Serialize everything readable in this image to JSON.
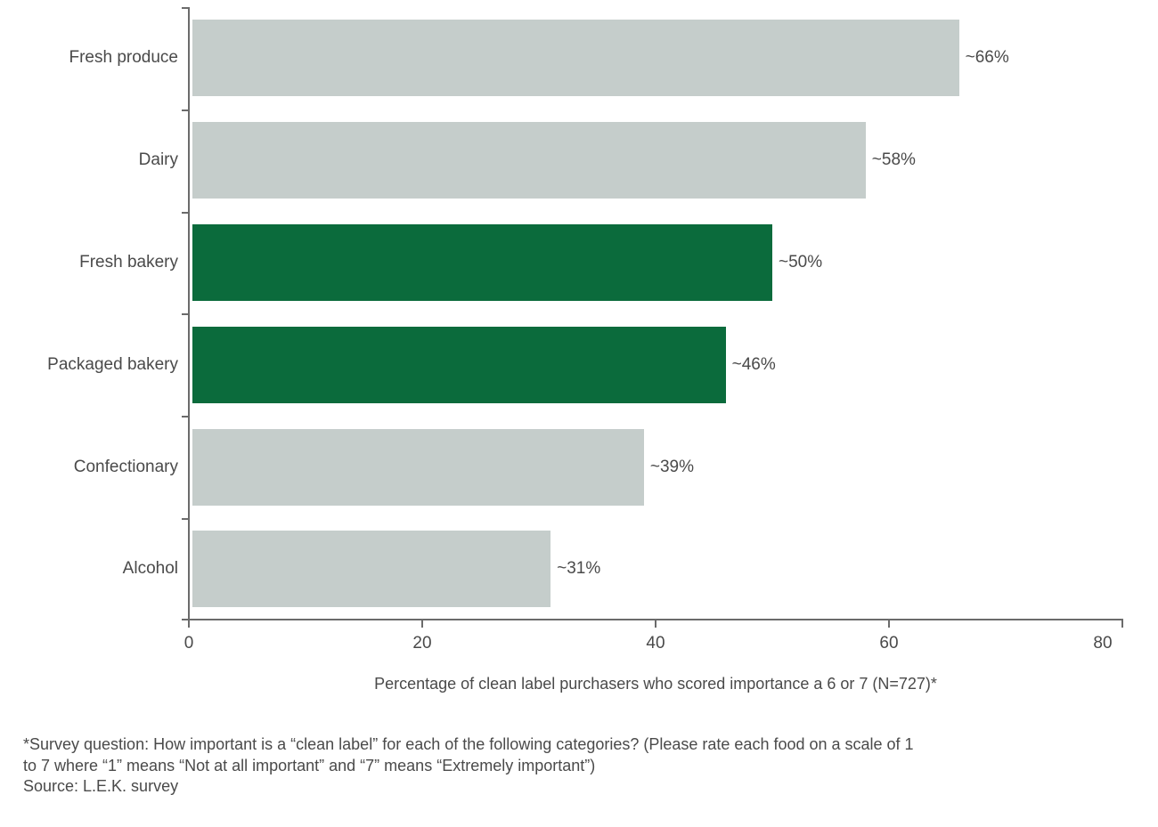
{
  "chart_data": {
    "type": "bar",
    "orientation": "horizontal",
    "title": "",
    "categories": [
      "Fresh produce",
      "Dairy",
      "Fresh bakery",
      "Packaged bakery",
      "Confectionary",
      "Alcohol"
    ],
    "values": [
      66,
      58,
      50,
      46,
      39,
      31
    ],
    "value_labels": [
      "~66%",
      "~58%",
      "~50%",
      "~46%",
      "~39%",
      "~31%"
    ],
    "highlighted": [
      false,
      false,
      true,
      true,
      false,
      false
    ],
    "xlabel": "Percentage of clean label purchasers who scored importance a 6 or 7 (N=727)*",
    "ylabel": "",
    "xlim": [
      0,
      80
    ],
    "x_ticks": [
      "0",
      "20",
      "40",
      "60",
      "80"
    ],
    "grid": false,
    "legend": null,
    "colors": {
      "default": "#c5cdcb",
      "highlight": "#0b6b3c"
    }
  },
  "footnote": {
    "line1": "*Survey question: How important is a “clean label” for each of the following categories? (Please rate each food on a scale of 1",
    "line2": "to 7 where “1” means “Not at all important” and “7” means “Extremely important”)",
    "source": "Source: L.E.K. survey"
  }
}
